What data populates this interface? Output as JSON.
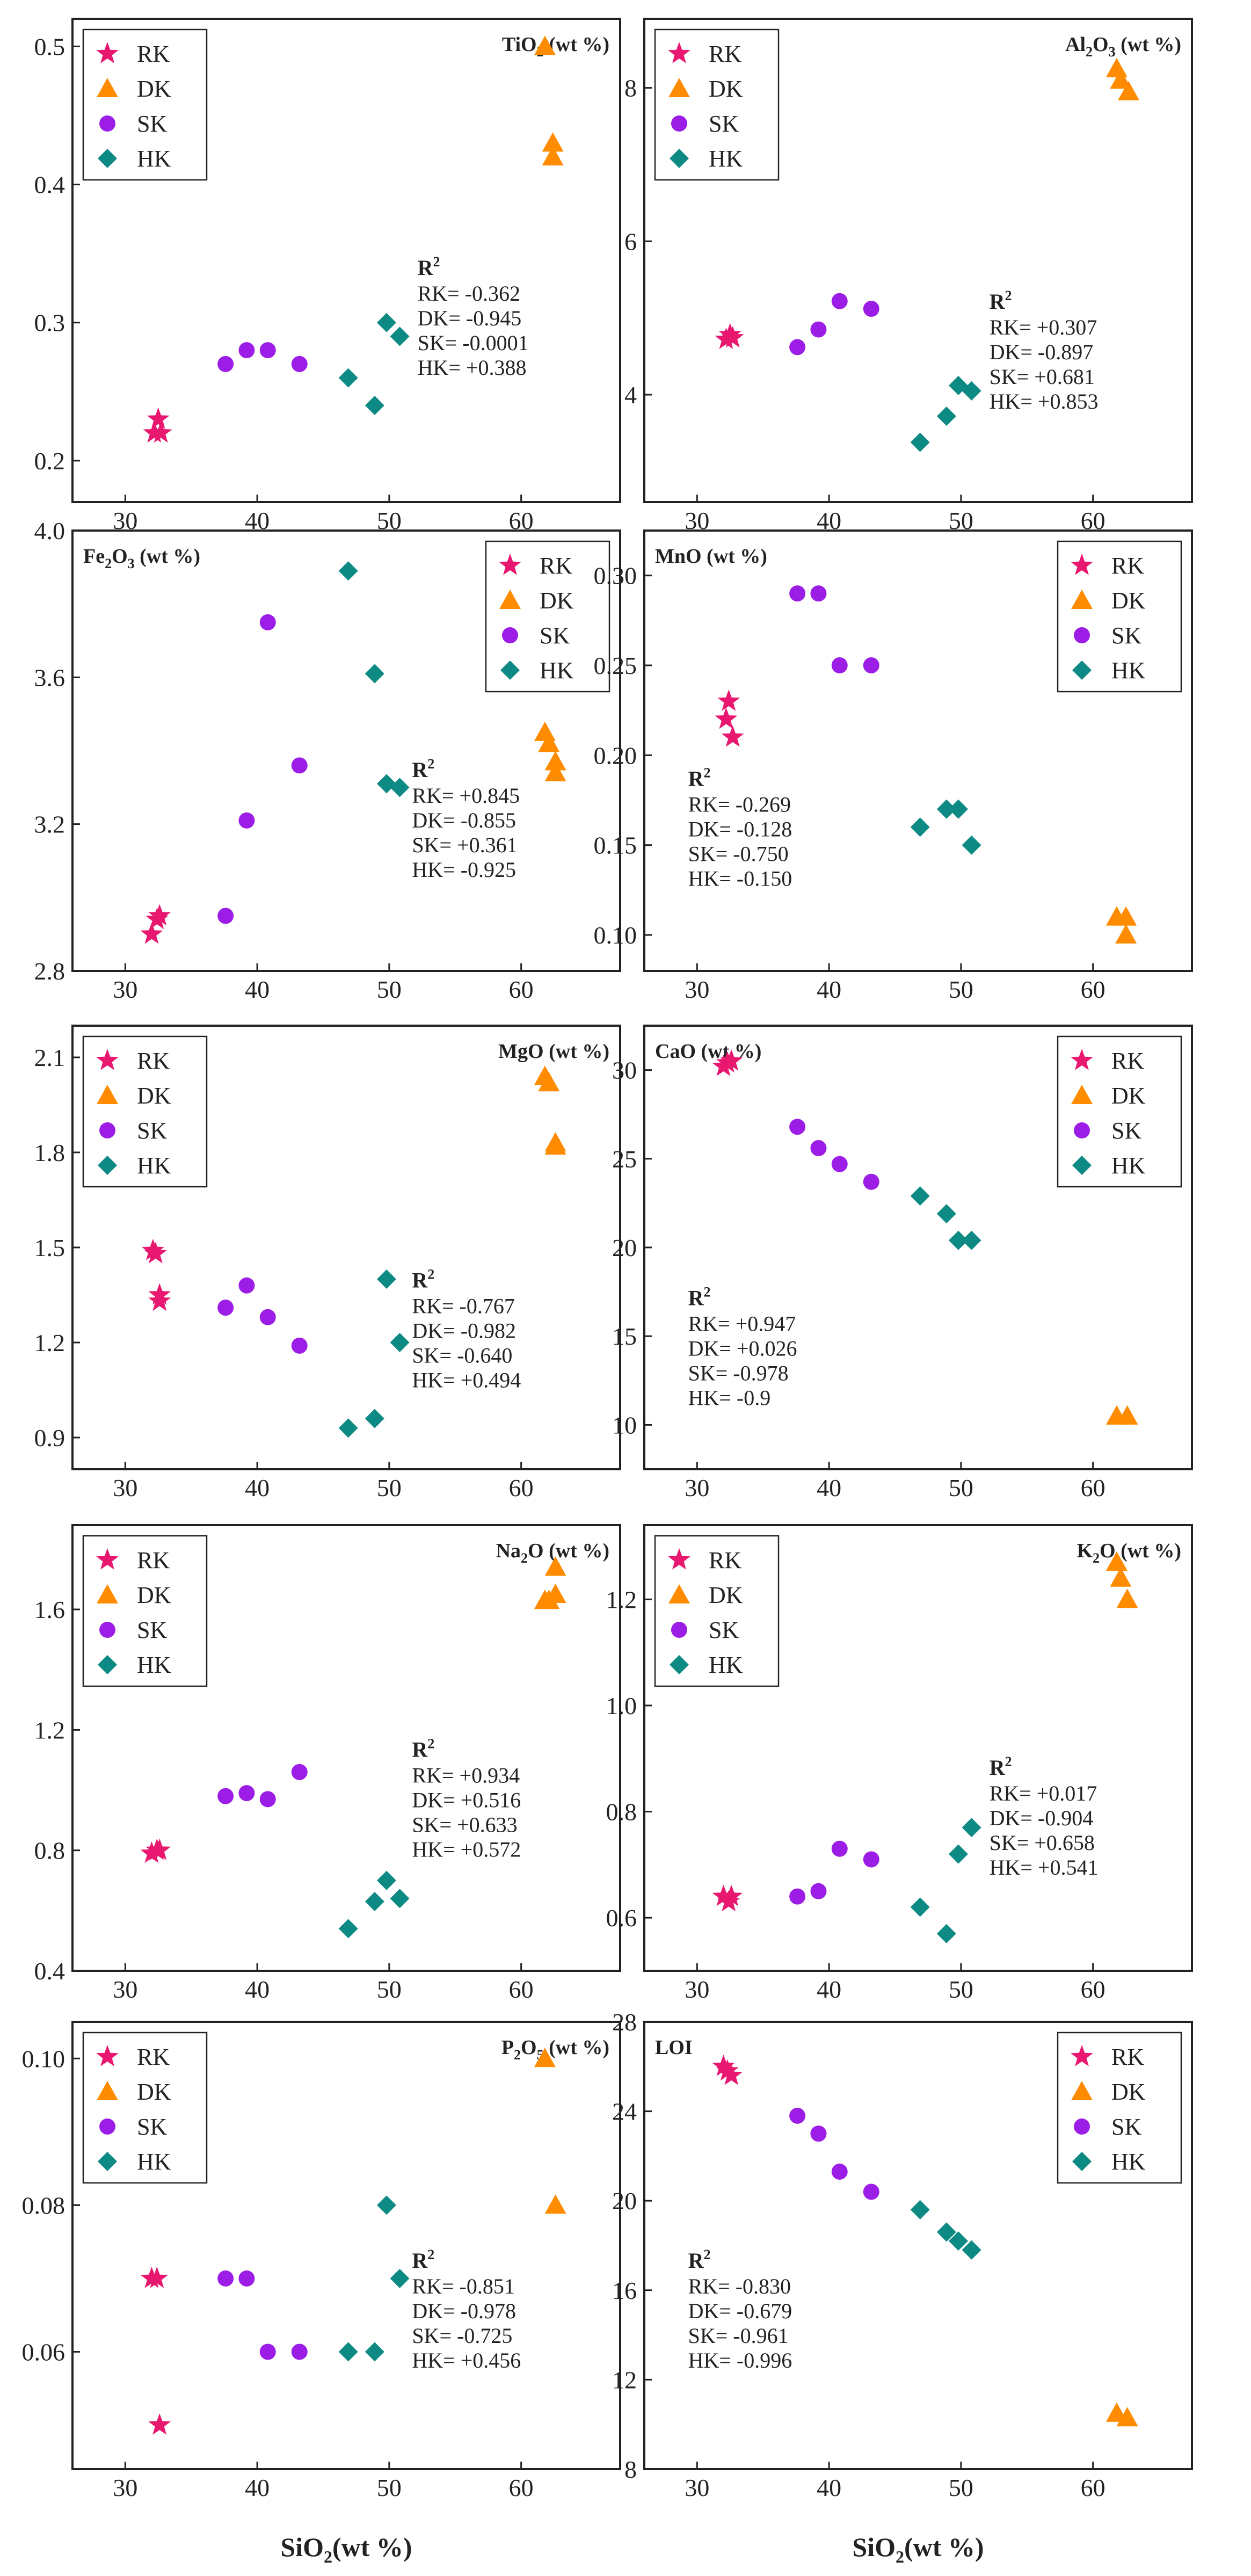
{
  "colors": {
    "RK": "#e8176f",
    "DK": "#ff8c00",
    "SK": "#9b1de6",
    "HK": "#0e8a85"
  },
  "legend": [
    "RK",
    "DK",
    "SK",
    "HK"
  ],
  "shared_x": {
    "label_main": "SiO",
    "label_sub": "2",
    "label_rest": "(wt %)",
    "ticks": [
      30,
      40,
      50,
      60
    ],
    "xlim": [
      26,
      67.5
    ]
  },
  "chart_data": [
    {
      "id": "tio2",
      "type": "scatter",
      "title": "TiO",
      "title_sub": "2",
      "title_rest": "(wt %)",
      "ylim": [
        0.17,
        0.52
      ],
      "yticks": [
        "0.2",
        "0.3",
        "0.4",
        "0.5"
      ],
      "series": [
        {
          "name": "RK",
          "marker": "star",
          "points": [
            [
              32.2,
              0.22
            ],
            [
              32.5,
              0.23
            ],
            [
              32.7,
              0.22
            ]
          ]
        },
        {
          "name": "DK",
          "marker": "triangle",
          "points": [
            [
              61.8,
              0.5
            ],
            [
              62.4,
              0.43
            ],
            [
              62.4,
              0.42
            ]
          ]
        },
        {
          "name": "SK",
          "marker": "circle",
          "points": [
            [
              37.6,
              0.27
            ],
            [
              39.2,
              0.28
            ],
            [
              40.8,
              0.28
            ],
            [
              43.2,
              0.27
            ]
          ]
        },
        {
          "name": "HK",
          "marker": "diamond",
          "points": [
            [
              46.9,
              0.26
            ],
            [
              48.9,
              0.24
            ],
            [
              49.8,
              0.3
            ],
            [
              50.8,
              0.29
            ]
          ]
        }
      ],
      "r2": [
        "RK= -0.362",
        "DK= -0.945",
        "SK= -0.0001",
        "HK= +0.388"
      ]
    },
    {
      "id": "al2o3",
      "type": "scatter",
      "title": "Al",
      "title_sub": "2",
      "title_rest": "O3 (wt %)",
      "title_parts": [
        "Al",
        "2",
        "O",
        "3",
        "(wt %)"
      ],
      "ylim": [
        2.6,
        8.9
      ],
      "yticks": [
        "4",
        "6",
        "8"
      ],
      "series": [
        {
          "name": "RK",
          "marker": "star",
          "points": [
            [
              32.2,
              4.72
            ],
            [
              32.5,
              4.78
            ],
            [
              32.7,
              4.74
            ]
          ]
        },
        {
          "name": "DK",
          "marker": "triangle",
          "points": [
            [
              61.8,
              8.25
            ],
            [
              62.1,
              8.1
            ],
            [
              62.7,
              7.95
            ]
          ]
        },
        {
          "name": "SK",
          "marker": "circle",
          "points": [
            [
              37.6,
              4.62
            ],
            [
              39.2,
              4.85
            ],
            [
              40.8,
              5.22
            ],
            [
              43.2,
              5.12
            ]
          ]
        },
        {
          "name": "HK",
          "marker": "diamond",
          "points": [
            [
              46.9,
              3.38
            ],
            [
              48.9,
              3.72
            ],
            [
              49.8,
              4.12
            ],
            [
              50.8,
              4.05
            ]
          ]
        }
      ],
      "r2": [
        "RK= +0.307",
        "DK= -0.897",
        "SK= +0.681",
        "HK= +0.853"
      ]
    },
    {
      "id": "fe2o3",
      "type": "scatter",
      "title_parts": [
        "Fe",
        "2",
        "O",
        "3",
        "(wt %)"
      ],
      "ylim": [
        2.8,
        4.0
      ],
      "yticks": [
        "2.8",
        "3.2",
        "3.6",
        "4.0"
      ],
      "series": [
        {
          "name": "RK",
          "marker": "star",
          "points": [
            [
              32.0,
              2.9
            ],
            [
              32.4,
              2.94
            ],
            [
              32.6,
              2.95
            ]
          ]
        },
        {
          "name": "DK",
          "marker": "triangle",
          "points": [
            [
              61.8,
              3.45
            ],
            [
              62.1,
              3.42
            ],
            [
              62.6,
              3.37
            ],
            [
              62.6,
              3.34
            ]
          ]
        },
        {
          "name": "SK",
          "marker": "circle",
          "points": [
            [
              37.6,
              2.95
            ],
            [
              39.2,
              3.21
            ],
            [
              40.8,
              3.75
            ],
            [
              43.2,
              3.36
            ]
          ]
        },
        {
          "name": "HK",
          "marker": "diamond",
          "points": [
            [
              46.9,
              3.89
            ],
            [
              48.9,
              3.61
            ],
            [
              49.8,
              3.31
            ],
            [
              50.8,
              3.3
            ]
          ]
        }
      ],
      "r2": [
        "RK= +0.845",
        "DK= -0.855",
        "SK= +0.361",
        "HK= -0.925"
      ]
    },
    {
      "id": "mno",
      "type": "scatter",
      "title_parts": [
        "MnO (wt %)"
      ],
      "ylim": [
        0.08,
        0.325
      ],
      "yticks": [
        "0.10",
        "0.15",
        "0.20",
        "0.25",
        "0.30"
      ],
      "series": [
        {
          "name": "RK",
          "marker": "star",
          "points": [
            [
              32.2,
              0.22
            ],
            [
              32.4,
              0.23
            ],
            [
              32.7,
              0.21
            ]
          ]
        },
        {
          "name": "DK",
          "marker": "triangle",
          "points": [
            [
              61.8,
              0.11
            ],
            [
              62.5,
              0.11
            ],
            [
              62.5,
              0.1
            ]
          ]
        },
        {
          "name": "SK",
          "marker": "circle",
          "points": [
            [
              37.6,
              0.29
            ],
            [
              39.2,
              0.29
            ],
            [
              40.8,
              0.25
            ],
            [
              43.2,
              0.25
            ]
          ]
        },
        {
          "name": "HK",
          "marker": "diamond",
          "points": [
            [
              46.9,
              0.16
            ],
            [
              48.9,
              0.17
            ],
            [
              49.8,
              0.17
            ],
            [
              50.8,
              0.15
            ]
          ]
        }
      ],
      "r2": [
        "RK= -0.269",
        "DK= -0.128",
        "SK= -0.750",
        "HK= -0.150"
      ]
    },
    {
      "id": "mgo",
      "type": "scatter",
      "title_parts": [
        "MgO (wt %)"
      ],
      "ylim": [
        0.8,
        2.2
      ],
      "yticks": [
        "0.9",
        "1.2",
        "1.5",
        "1.8",
        "2.1"
      ],
      "series": [
        {
          "name": "RK",
          "marker": "star",
          "points": [
            [
              32.1,
              1.49
            ],
            [
              32.3,
              1.48
            ],
            [
              32.6,
              1.35
            ],
            [
              32.6,
              1.33
            ]
          ]
        },
        {
          "name": "DK",
          "marker": "triangle",
          "points": [
            [
              61.8,
              2.04
            ],
            [
              62.1,
              2.02
            ],
            [
              62.6,
              1.83
            ],
            [
              62.6,
              1.82
            ]
          ]
        },
        {
          "name": "SK",
          "marker": "circle",
          "points": [
            [
              37.6,
              1.31
            ],
            [
              39.2,
              1.38
            ],
            [
              40.8,
              1.28
            ],
            [
              43.2,
              1.19
            ]
          ]
        },
        {
          "name": "HK",
          "marker": "diamond",
          "points": [
            [
              46.9,
              0.93
            ],
            [
              48.9,
              0.96
            ],
            [
              49.8,
              1.4
            ],
            [
              50.8,
              1.2
            ]
          ]
        }
      ],
      "r2": [
        "RK= -0.767",
        "DK= -0.982",
        "SK= -0.640",
        "HK= +0.494"
      ]
    },
    {
      "id": "cao",
      "type": "scatter",
      "title_parts": [
        "CaO (wt %)"
      ],
      "ylim": [
        7.5,
        32.5
      ],
      "yticks": [
        "10",
        "15",
        "20",
        "25",
        "30"
      ],
      "series": [
        {
          "name": "RK",
          "marker": "star",
          "points": [
            [
              32.0,
              30.2
            ],
            [
              32.3,
              30.4
            ],
            [
              32.6,
              30.5
            ]
          ]
        },
        {
          "name": "DK",
          "marker": "triangle",
          "points": [
            [
              61.8,
              10.5
            ],
            [
              62.6,
              10.5
            ]
          ]
        },
        {
          "name": "SK",
          "marker": "circle",
          "points": [
            [
              37.6,
              26.8
            ],
            [
              39.2,
              25.6
            ],
            [
              40.8,
              24.7
            ],
            [
              43.2,
              23.7
            ]
          ]
        },
        {
          "name": "HK",
          "marker": "diamond",
          "points": [
            [
              46.9,
              22.9
            ],
            [
              48.9,
              21.9
            ],
            [
              49.8,
              20.4
            ],
            [
              50.8,
              20.4
            ]
          ]
        }
      ],
      "r2": [
        "RK= +0.947",
        "DK= +0.026",
        "SK= -0.978",
        "HK= -0.9"
      ]
    },
    {
      "id": "na2o",
      "type": "scatter",
      "title_parts": [
        "Na",
        "2",
        "O (wt %)"
      ],
      "ylim": [
        0.4,
        1.88
      ],
      "yticks": [
        "0.4",
        "0.8",
        "1.2",
        "1.6"
      ],
      "series": [
        {
          "name": "RK",
          "marker": "star",
          "points": [
            [
              32.0,
              0.79
            ],
            [
              32.4,
              0.8
            ],
            [
              32.6,
              0.8
            ]
          ]
        },
        {
          "name": "DK",
          "marker": "triangle",
          "points": [
            [
              61.8,
              1.63
            ],
            [
              62.1,
              1.63
            ],
            [
              62.6,
              1.65
            ],
            [
              62.6,
              1.74
            ]
          ]
        },
        {
          "name": "SK",
          "marker": "circle",
          "points": [
            [
              37.6,
              0.98
            ],
            [
              39.2,
              0.99
            ],
            [
              40.8,
              0.97
            ],
            [
              43.2,
              1.06
            ]
          ]
        },
        {
          "name": "HK",
          "marker": "diamond",
          "points": [
            [
              46.9,
              0.54
            ],
            [
              48.9,
              0.63
            ],
            [
              49.8,
              0.7
            ],
            [
              50.8,
              0.64
            ]
          ]
        }
      ],
      "r2": [
        "RK= +0.934",
        "DK= +0.516",
        "SK= +0.633",
        "HK= +0.572"
      ]
    },
    {
      "id": "k2o",
      "type": "scatter",
      "title_parts": [
        "K",
        "2",
        "O (wt %)"
      ],
      "ylim": [
        0.5,
        1.34
      ],
      "yticks": [
        "0.6",
        "0.8",
        "1.0",
        "1.2"
      ],
      "series": [
        {
          "name": "RK",
          "marker": "star",
          "points": [
            [
              32.0,
              0.64
            ],
            [
              32.4,
              0.63
            ],
            [
              32.6,
              0.64
            ]
          ]
        },
        {
          "name": "DK",
          "marker": "triangle",
          "points": [
            [
              61.8,
              1.27
            ],
            [
              62.1,
              1.24
            ],
            [
              62.6,
              1.2
            ]
          ]
        },
        {
          "name": "SK",
          "marker": "circle",
          "points": [
            [
              37.6,
              0.64
            ],
            [
              39.2,
              0.65
            ],
            [
              40.8,
              0.73
            ],
            [
              43.2,
              0.71
            ]
          ]
        },
        {
          "name": "HK",
          "marker": "diamond",
          "points": [
            [
              46.9,
              0.62
            ],
            [
              48.9,
              0.57
            ],
            [
              49.8,
              0.72
            ],
            [
              50.8,
              0.77
            ]
          ]
        }
      ],
      "r2": [
        "RK= +0.017",
        "DK= -0.904",
        "SK= +0.658",
        "HK= +0.541"
      ]
    },
    {
      "id": "p2o5",
      "type": "scatter",
      "title_parts": [
        "P",
        "2",
        "O",
        "5",
        "(wt %)"
      ],
      "ylim": [
        0.044,
        0.105
      ],
      "yticks": [
        "0.06",
        "0.08",
        "0.10"
      ],
      "series": [
        {
          "name": "RK",
          "marker": "star",
          "points": [
            [
              32.0,
              0.07
            ],
            [
              32.4,
              0.07
            ],
            [
              32.6,
              0.05
            ]
          ]
        },
        {
          "name": "DK",
          "marker": "triangle",
          "points": [
            [
              61.8,
              0.1
            ],
            [
              62.6,
              0.08
            ]
          ]
        },
        {
          "name": "SK",
          "marker": "circle",
          "points": [
            [
              37.6,
              0.07
            ],
            [
              39.2,
              0.07
            ],
            [
              40.8,
              0.06
            ],
            [
              43.2,
              0.06
            ]
          ]
        },
        {
          "name": "HK",
          "marker": "diamond",
          "points": [
            [
              46.9,
              0.06
            ],
            [
              48.9,
              0.06
            ],
            [
              49.8,
              0.08
            ],
            [
              50.8,
              0.07
            ]
          ]
        }
      ],
      "r2": [
        "RK= -0.851",
        "DK= -0.978",
        "SK= -0.725",
        "HK= +0.456"
      ]
    },
    {
      "id": "loi",
      "type": "scatter",
      "title_parts": [
        "LOI"
      ],
      "ylim": [
        8,
        28
      ],
      "yticks": [
        "8",
        "12",
        "16",
        "20",
        "24",
        "28"
      ],
      "series": [
        {
          "name": "RK",
          "marker": "star",
          "points": [
            [
              32.0,
              26.0
            ],
            [
              32.3,
              25.8
            ],
            [
              32.6,
              25.6
            ]
          ]
        },
        {
          "name": "DK",
          "marker": "triangle",
          "points": [
            [
              61.8,
              10.5
            ],
            [
              62.6,
              10.3
            ]
          ]
        },
        {
          "name": "SK",
          "marker": "circle",
          "points": [
            [
              37.6,
              23.8
            ],
            [
              39.2,
              23.0
            ],
            [
              40.8,
              21.3
            ],
            [
              43.2,
              20.4
            ]
          ]
        },
        {
          "name": "HK",
          "marker": "diamond",
          "points": [
            [
              46.9,
              19.6
            ],
            [
              48.9,
              18.6
            ],
            [
              49.8,
              18.2
            ],
            [
              50.8,
              17.8
            ]
          ]
        }
      ],
      "r2": [
        "RK= -0.830",
        "DK= -0.679",
        "SK= -0.961",
        "HK= -0.996"
      ]
    }
  ],
  "r2_heading": "R",
  "r2_heading_sup": "2"
}
